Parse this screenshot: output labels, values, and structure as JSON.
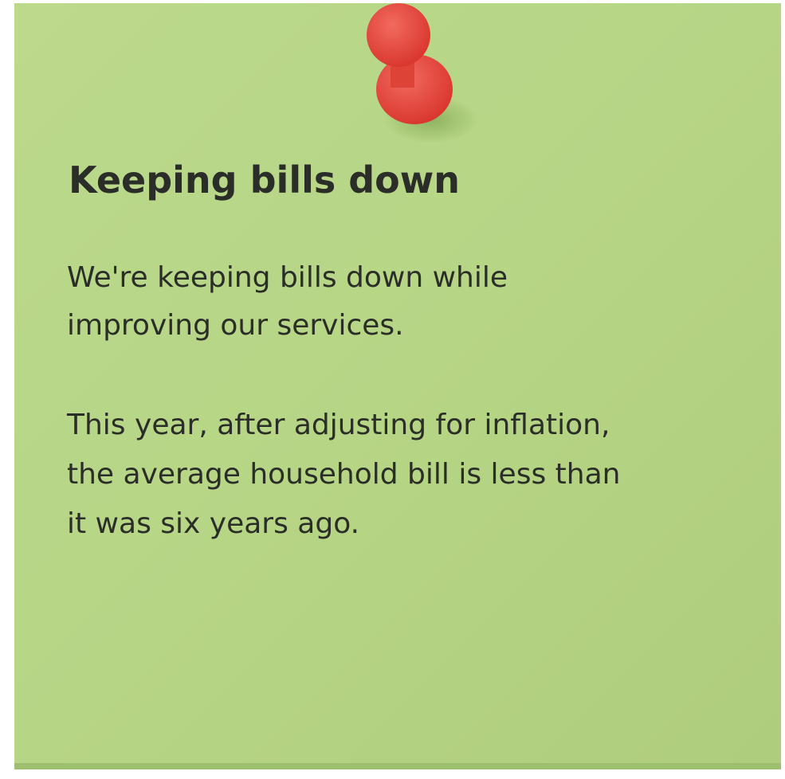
{
  "note": {
    "title": "Keeping bills down",
    "paragraphs": [
      [
        "We're keeping bills down while",
        "improving our services."
      ],
      [
        "This year, after adjusting for inflation,",
        "the average household bill is less than",
        "it was six years ago."
      ]
    ]
  }
}
